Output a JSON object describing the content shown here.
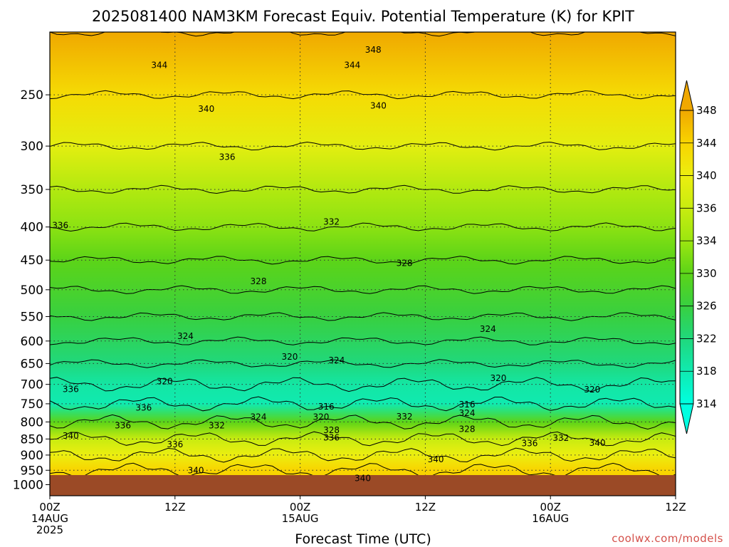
{
  "chart_data": {
    "type": "heatmap",
    "subtype": "filled-contour time-pressure cross-section",
    "title": "2025081400 NAM3KM Forecast Equiv. Potential Temperature (K) for KPIT",
    "xlabel": "Forecast Time (UTC)",
    "ylabel": "",
    "x_axis": {
      "unit": "forecast hour",
      "range": [
        0,
        60
      ],
      "ticks": [
        {
          "value": 0,
          "lines": [
            "00Z",
            "14AUG",
            "2025"
          ]
        },
        {
          "value": 12,
          "lines": [
            "12Z"
          ]
        },
        {
          "value": 24,
          "lines": [
            "00Z",
            "15AUG"
          ]
        },
        {
          "value": 36,
          "lines": [
            "12Z"
          ]
        },
        {
          "value": 48,
          "lines": [
            "00Z",
            "16AUG"
          ]
        },
        {
          "value": 60,
          "lines": [
            "12Z"
          ]
        }
      ]
    },
    "y_axis": {
      "unit": "hPa",
      "scale": "log",
      "inverted": true,
      "range": [
        1040,
        200
      ],
      "ticks": [
        250,
        300,
        350,
        400,
        450,
        500,
        550,
        600,
        650,
        700,
        750,
        800,
        850,
        900,
        950,
        1000
      ]
    },
    "grid": true,
    "colorbar": {
      "position": "right",
      "ticks": [
        348,
        344,
        340,
        336,
        334,
        330,
        326,
        322,
        318,
        314
      ],
      "colors": [
        "#f0a800",
        "#f8d400",
        "#ecee10",
        "#c8ec10",
        "#9ce610",
        "#5cd418",
        "#38d040",
        "#20d87c",
        "#10eab0",
        "#00ffe0"
      ]
    },
    "field_levels": [
      {
        "p": 200,
        "theta_e": 348
      },
      {
        "p": 250,
        "theta_e": 343
      },
      {
        "p": 300,
        "theta_e": 339
      },
      {
        "p": 350,
        "theta_e": 335
      },
      {
        "p": 400,
        "theta_e": 333
      },
      {
        "p": 450,
        "theta_e": 330
      },
      {
        "p": 500,
        "theta_e": 328
      },
      {
        "p": 550,
        "theta_e": 326
      },
      {
        "p": 600,
        "theta_e": 324
      },
      {
        "p": 650,
        "theta_e": 322
      },
      {
        "p": 700,
        "theta_e": 319
      },
      {
        "p": 750,
        "theta_e": 318
      },
      {
        "p": 800,
        "theta_e": 330
      },
      {
        "p": 850,
        "theta_e": 336
      },
      {
        "p": 900,
        "theta_e": 340
      },
      {
        "p": 950,
        "theta_e": 344
      }
    ],
    "contour_labels": [
      {
        "text": "348",
        "t": 31.0,
        "p": 213
      },
      {
        "text": "344",
        "t": 10.5,
        "p": 225
      },
      {
        "text": "344",
        "t": 29.0,
        "p": 225
      },
      {
        "text": "340",
        "t": 15.0,
        "p": 263
      },
      {
        "text": "340",
        "t": 31.5,
        "p": 260
      },
      {
        "text": "336",
        "t": 17.0,
        "p": 312
      },
      {
        "text": "336",
        "t": 1.0,
        "p": 398
      },
      {
        "text": "332",
        "t": 27.0,
        "p": 393
      },
      {
        "text": "328",
        "t": 20.0,
        "p": 485
      },
      {
        "text": "328",
        "t": 34.0,
        "p": 455
      },
      {
        "text": "324",
        "t": 13.0,
        "p": 590
      },
      {
        "text": "324",
        "t": 42.0,
        "p": 575
      },
      {
        "text": "324",
        "t": 27.5,
        "p": 643
      },
      {
        "text": "320",
        "t": 23.0,
        "p": 635
      },
      {
        "text": "320",
        "t": 11.0,
        "p": 693
      },
      {
        "text": "320",
        "t": 43.0,
        "p": 685
      },
      {
        "text": "320",
        "t": 52.0,
        "p": 713
      },
      {
        "text": "316",
        "t": 26.5,
        "p": 758
      },
      {
        "text": "316",
        "t": 40.0,
        "p": 752
      },
      {
        "text": "336",
        "t": 2.0,
        "p": 712
      },
      {
        "text": "336",
        "t": 9.0,
        "p": 761
      },
      {
        "text": "324",
        "t": 20.0,
        "p": 786
      },
      {
        "text": "320",
        "t": 26.0,
        "p": 786
      },
      {
        "text": "332",
        "t": 16.0,
        "p": 810
      },
      {
        "text": "332",
        "t": 34.0,
        "p": 785
      },
      {
        "text": "324",
        "t": 40.0,
        "p": 775
      },
      {
        "text": "328",
        "t": 27.0,
        "p": 824
      },
      {
        "text": "328",
        "t": 40.0,
        "p": 821
      },
      {
        "text": "336",
        "t": 7.0,
        "p": 810
      },
      {
        "text": "336",
        "t": 27.0,
        "p": 846
      },
      {
        "text": "332",
        "t": 49.0,
        "p": 847
      },
      {
        "text": "340",
        "t": 2.0,
        "p": 841
      },
      {
        "text": "336",
        "t": 12.0,
        "p": 867
      },
      {
        "text": "336",
        "t": 46.0,
        "p": 863
      },
      {
        "text": "340",
        "t": 52.5,
        "p": 862
      },
      {
        "text": "340",
        "t": 37.0,
        "p": 914
      },
      {
        "text": "340",
        "t": 14.0,
        "p": 950
      },
      {
        "text": "340",
        "t": 30.0,
        "p": 978
      }
    ]
  },
  "watermark": "coolwx.com/models",
  "colors": {
    "ground": "#9b4a26",
    "contour": "#000000",
    "grid": "#333333",
    "credit": "#d4504a"
  }
}
